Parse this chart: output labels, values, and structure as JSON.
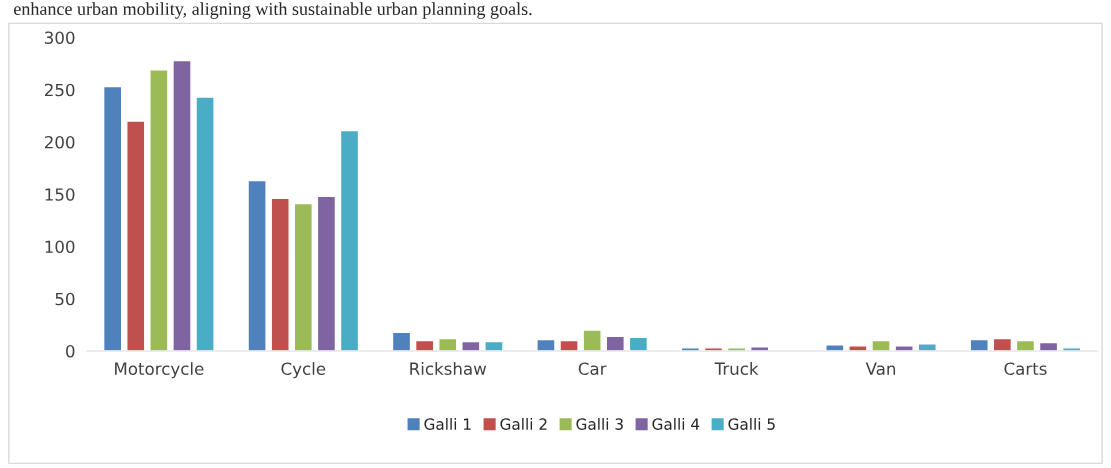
{
  "chart_data": {
    "type": "bar",
    "categories": [
      "Motorcycle",
      "Cycle",
      "Rickshaw",
      "Car",
      "Truck",
      "Van",
      "Carts"
    ],
    "series": [
      {
        "name": "Galli 1",
        "color": "#4f81bd",
        "values": [
          253,
          163,
          18,
          11,
          3,
          6,
          11
        ]
      },
      {
        "name": "Galli 2",
        "color": "#c0504d",
        "values": [
          220,
          146,
          10,
          10,
          3,
          5,
          12
        ]
      },
      {
        "name": "Galli 3",
        "color": "#9bbb59",
        "values": [
          269,
          141,
          12,
          20,
          3,
          10,
          10
        ]
      },
      {
        "name": "Galli 4",
        "color": "#8064a2",
        "values": [
          278,
          148,
          9,
          14,
          4,
          5,
          8
        ]
      },
      {
        "name": "Galli 5",
        "color": "#4bacc6",
        "values": [
          243,
          211,
          9,
          13,
          null,
          7,
          3
        ]
      }
    ],
    "ylim": [
      0,
      300
    ],
    "yticks": [
      0,
      50,
      100,
      150,
      200,
      250,
      300
    ],
    "grid": false,
    "legend": "bottom",
    "annotations": [
      "enhance urban mobility, aligning with sustainable urban planning goals."
    ]
  }
}
